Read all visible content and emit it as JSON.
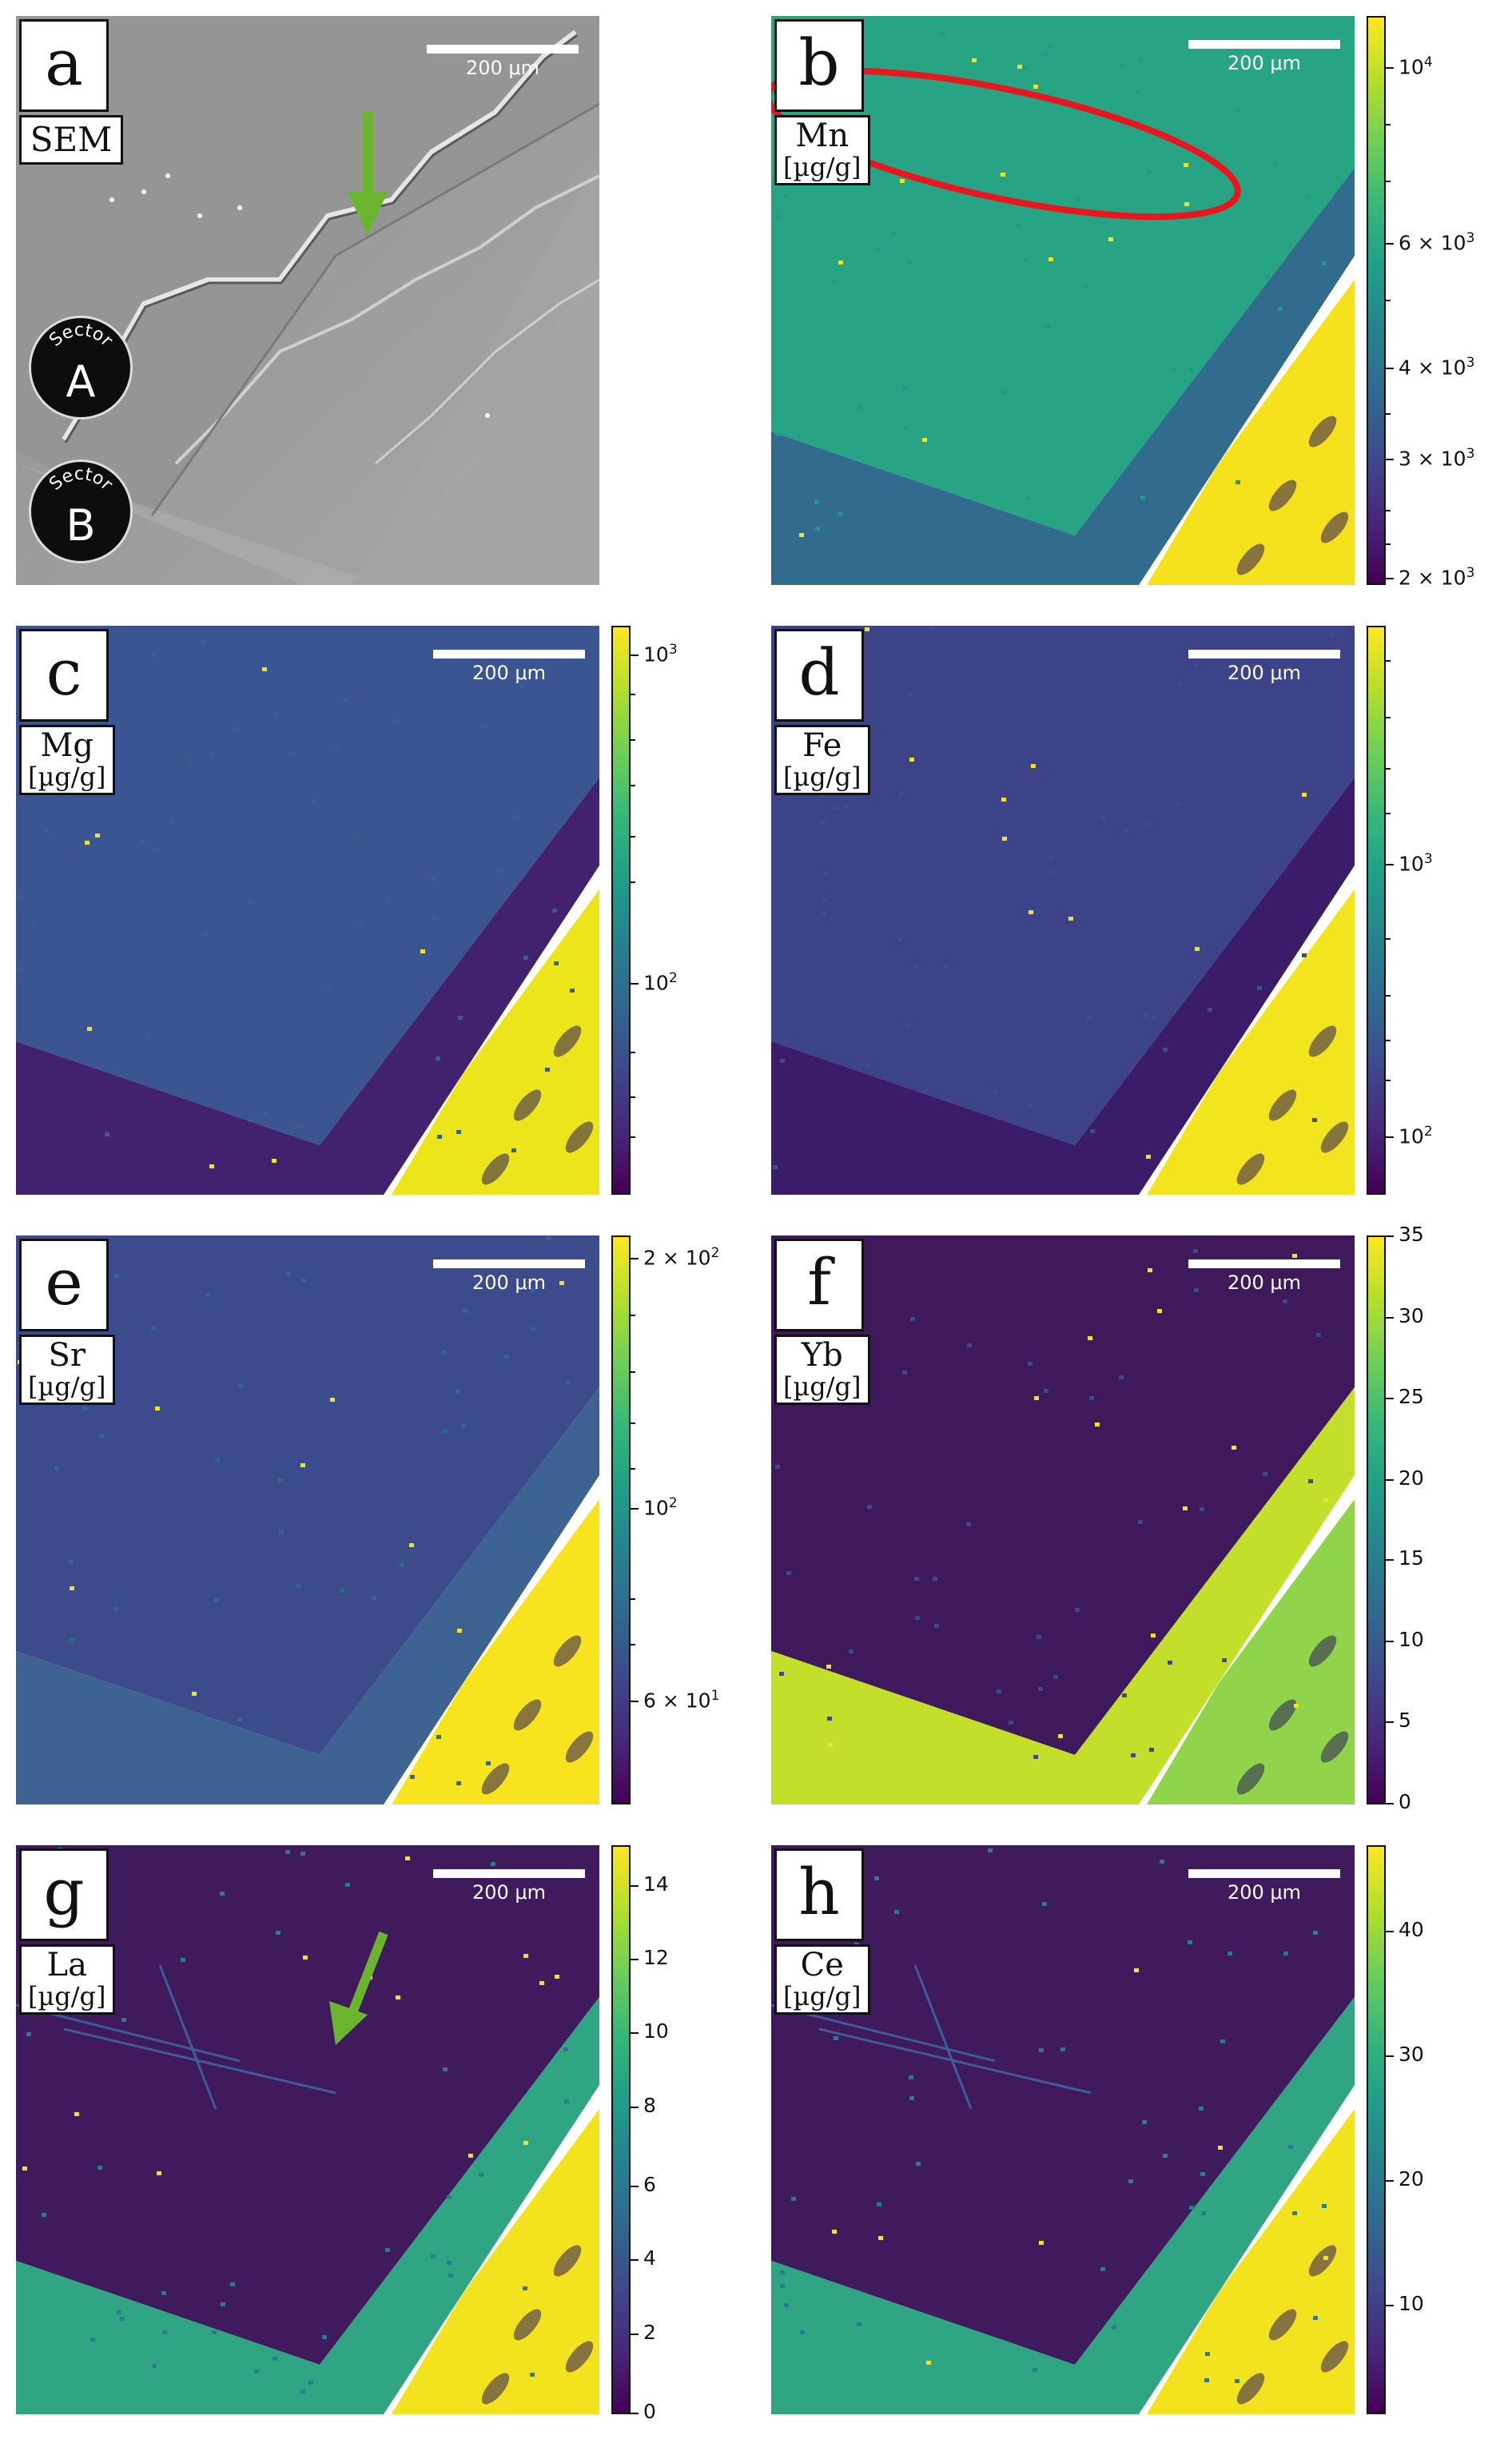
{
  "scale_bar_text": "200 μm",
  "colormap": [
    "#440154",
    "#482878",
    "#3e4a89",
    "#31688e",
    "#26828e",
    "#1f9e89",
    "#35b779",
    "#6ece58",
    "#b5de2b",
    "#fde725"
  ],
  "panels": [
    {
      "id": "a",
      "letter": "a",
      "label": "SEM",
      "unit": "",
      "type": "sem",
      "sectors": [
        {
          "word": "Sector",
          "letter": "A"
        },
        {
          "word": "Sector",
          "letter": "B"
        }
      ]
    },
    {
      "id": "b",
      "letter": "b",
      "label": "Mn",
      "unit": "[µg/g]",
      "type": "map",
      "colors": {
        "upper": "#26a484",
        "lower": "#316b8d",
        "rim": "#f5e21d",
        "scatter": "#24998a"
      },
      "colorbar": {
        "ticks": [
          {
            "html": "10<sup>4</sup>",
            "pos": 0.09
          },
          {
            "html": "6 × 10<sup>3</sup>",
            "pos": 0.4
          },
          {
            "html": "4 × 10<sup>3</sup>",
            "pos": 0.62
          },
          {
            "html": "3 × 10<sup>3</sup>",
            "pos": 0.78
          },
          {
            "html": "2 × 10<sup>3</sup>",
            "pos": 0.99
          }
        ],
        "minor": [
          0.19,
          0.29,
          0.5,
          0.7,
          0.87,
          0.93
        ]
      }
    },
    {
      "id": "c",
      "letter": "c",
      "label": "Mg",
      "unit": "[µg/g]",
      "type": "map",
      "colors": {
        "upper": "#3b5492",
        "lower": "#42226f",
        "rim": "#ede51b",
        "scatter": "#35608d"
      },
      "colorbar": {
        "ticks": [
          {
            "html": "10<sup>3</sup>",
            "pos": 0.05
          },
          {
            "html": "10<sup>2</sup>",
            "pos": 0.63
          }
        ],
        "minor": [
          0.12,
          0.2,
          0.28,
          0.37,
          0.45,
          0.75,
          0.83,
          0.9
        ]
      }
    },
    {
      "id": "d",
      "letter": "d",
      "label": "Fe",
      "unit": "[µg/g]",
      "type": "map",
      "colors": {
        "upper": "#3d4389",
        "lower": "#3a1c6a",
        "rim": "#f2e51e",
        "scatter": "#3c4e8a"
      },
      "colorbar": {
        "ticks": [
          {
            "html": "10<sup>3</sup>",
            "pos": 0.42
          },
          {
            "html": "10<sup>2</sup>",
            "pos": 0.9
          }
        ],
        "minor": [
          0.06,
          0.16,
          0.25,
          0.33,
          0.55,
          0.65,
          0.73,
          0.8
        ]
      }
    },
    {
      "id": "e",
      "letter": "e",
      "label": "Sr",
      "unit": "[µg/g]",
      "type": "map",
      "colors": {
        "upper": "#3c4b8b",
        "lower": "#3c6391",
        "rim": "#f7e41f",
        "scatter": "#2f6a8e"
      },
      "colorbar": {
        "ticks": [
          {
            "html": "2 × 10<sup>2</sup>",
            "pos": 0.04
          },
          {
            "html": "10<sup>2</sup>",
            "pos": 0.48
          },
          {
            "html": "6 × 10<sup>1</sup>",
            "pos": 0.82
          }
        ],
        "minor": [
          0.14,
          0.24,
          0.33,
          0.41,
          0.64,
          0.72
        ]
      }
    },
    {
      "id": "f",
      "letter": "f",
      "label": "Yb",
      "unit": "[µg/g]",
      "type": "map",
      "colors": {
        "upper": "#3e1a5c",
        "lower": "#c4df2a",
        "rim": "#8fd44a",
        "scatter": "#3b4a8a"
      },
      "colorbar": {
        "ticks": [
          {
            "html": "35",
            "pos": 0.0
          },
          {
            "html": "30",
            "pos": 0.143
          },
          {
            "html": "25",
            "pos": 0.286
          },
          {
            "html": "20",
            "pos": 0.429
          },
          {
            "html": "15",
            "pos": 0.571
          },
          {
            "html": "10",
            "pos": 0.714
          },
          {
            "html": "5",
            "pos": 0.857
          },
          {
            "html": "0",
            "pos": 1.0
          }
        ],
        "minor": []
      }
    },
    {
      "id": "g",
      "letter": "g",
      "label": "La",
      "unit": "[µg/g]",
      "type": "map",
      "colors": {
        "upper": "#3f1b5e",
        "lower": "#2fa583",
        "rim": "#f3e31f",
        "scatter": "#2d7a8e"
      },
      "colorbar": {
        "ticks": [
          {
            "html": "14",
            "pos": 0.07
          },
          {
            "html": "12",
            "pos": 0.2
          },
          {
            "html": "10",
            "pos": 0.33
          },
          {
            "html": "8",
            "pos": 0.46
          },
          {
            "html": "6",
            "pos": 0.6
          },
          {
            "html": "4",
            "pos": 0.73
          },
          {
            "html": "2",
            "pos": 0.86
          },
          {
            "html": "0",
            "pos": 1.0
          }
        ],
        "minor": []
      }
    },
    {
      "id": "h",
      "letter": "h",
      "label": "Ce",
      "unit": "[µg/g]",
      "type": "map",
      "colors": {
        "upper": "#3f1b5e",
        "lower": "#2fa583",
        "rim": "#f3e31f",
        "scatter": "#2d7a8e"
      },
      "colorbar": {
        "ticks": [
          {
            "html": "40",
            "pos": 0.15
          },
          {
            "html": "30",
            "pos": 0.37
          },
          {
            "html": "20",
            "pos": 0.59
          },
          {
            "html": "10",
            "pos": 0.81
          }
        ],
        "minor": []
      }
    }
  ]
}
